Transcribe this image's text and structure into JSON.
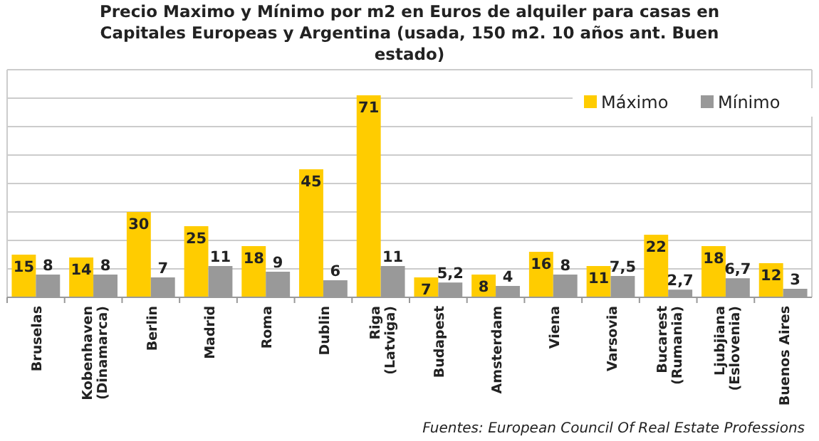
{
  "chart_data": {
    "type": "bar",
    "title": "Precio Maximo y Mínimo por m2 en Euros de alquiler para casas en\nCapitales Europeas y Argentina (usada, 150 m2. 10 años ant. Buen\nestado)",
    "categories": [
      "Bruselas",
      "Kobenhaven\n(Dinamarca)",
      "Berlin",
      "Madrid",
      "Roma",
      "Dublin",
      "Riga\n(Latviga)",
      "Budapest",
      "Amsterdam",
      "Viena",
      "Varsovia",
      "Bucarest\n(Rumania)",
      "Ljubjiana\n(Eslovenia)",
      "Buenos Aires"
    ],
    "series": [
      {
        "name": "Máximo",
        "color": "#ffcc00",
        "values": [
          15,
          14,
          30,
          25,
          18,
          45,
          71,
          7,
          8,
          16,
          11,
          22,
          18,
          12
        ],
        "value_labels": [
          "15",
          "14",
          "30",
          "25",
          "18",
          "45",
          "71",
          "7",
          "8",
          "16",
          "11",
          "22",
          "18",
          "12"
        ]
      },
      {
        "name": "Mínimo",
        "color": "#999999",
        "values": [
          8,
          8,
          7,
          11,
          9,
          6,
          11,
          5.2,
          4,
          8,
          7.5,
          2.7,
          6.7,
          3
        ],
        "value_labels": [
          "8",
          "8",
          "7",
          "11",
          "9",
          "6",
          "11",
          "5,2",
          "4",
          "8",
          "7,5",
          "2,7",
          "6,7",
          "3"
        ]
      }
    ],
    "ylim": [
      0,
      80
    ],
    "yticks": [
      {
        "value": 0,
        "label": null
      },
      {
        "value": 10,
        "label": null
      },
      {
        "value": 20,
        "label": null
      },
      {
        "value": 30,
        "label": null
      },
      {
        "value": 40,
        "label": null
      },
      {
        "value": 50,
        "label": null
      },
      {
        "value": 60,
        "label": null
      },
      {
        "value": 70,
        "label": null
      },
      {
        "value": 80,
        "label": null
      }
    ],
    "grid": "y",
    "legend": "top right",
    "annotations": [
      "Fuentes: European Council Of Real Estate Professions"
    ]
  }
}
